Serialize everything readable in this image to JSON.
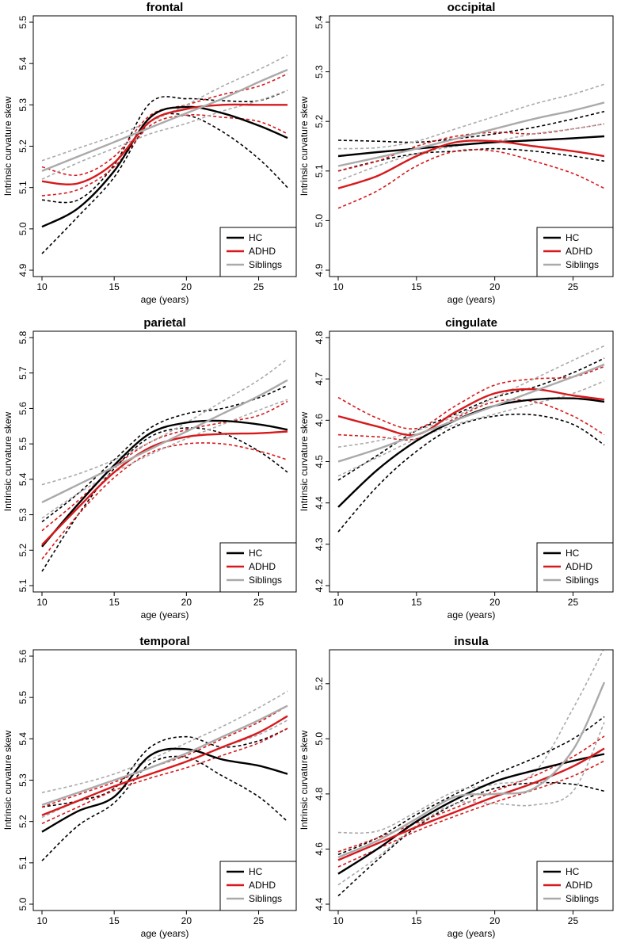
{
  "figure": {
    "legend_labels": [
      "HC",
      "ADHD",
      "Siblings"
    ]
  },
  "chart_data": [
    {
      "type": "line",
      "title": "frontal",
      "xlabel": "age (years)",
      "ylabel": "Intrinsic curvature skew",
      "xlim": [
        10,
        27
      ],
      "ylim": [
        4.9,
        5.5
      ],
      "xticks": [
        "10",
        "15",
        "20",
        "25"
      ],
      "yticks": [
        "4.9",
        "5.0",
        "5.1",
        "5.2",
        "5.3",
        "5.4",
        "5.5"
      ],
      "legend": "bottom-right",
      "x": [
        10,
        12.5,
        15,
        17.5,
        20,
        22.5,
        25,
        27
      ],
      "series": [
        {
          "name": "HC",
          "color": "#000000",
          "fit": [
            5.005,
            5.05,
            5.14,
            5.27,
            5.295,
            5.28,
            5.25,
            5.22
          ],
          "lower": [
            4.94,
            5.03,
            5.125,
            5.26,
            5.275,
            5.235,
            5.17,
            5.1
          ],
          "upper": [
            5.07,
            5.07,
            5.155,
            5.305,
            5.315,
            5.31,
            5.31,
            5.335
          ]
        },
        {
          "name": "ADHD",
          "color": "#d7191c",
          "fit": [
            5.115,
            5.11,
            5.16,
            5.26,
            5.29,
            5.3,
            5.3,
            5.3
          ],
          "lower": [
            5.08,
            5.095,
            5.15,
            5.25,
            5.275,
            5.27,
            5.26,
            5.23
          ],
          "upper": [
            5.15,
            5.13,
            5.175,
            5.275,
            5.3,
            5.325,
            5.345,
            5.375
          ]
        },
        {
          "name": "Siblings",
          "color": "#aaaaaa",
          "fit": [
            5.14,
            5.175,
            5.21,
            5.245,
            5.28,
            5.315,
            5.355,
            5.385
          ],
          "lower": [
            5.12,
            5.16,
            5.195,
            5.23,
            5.255,
            5.285,
            5.31,
            5.335
          ],
          "upper": [
            5.165,
            5.195,
            5.225,
            5.26,
            5.3,
            5.345,
            5.385,
            5.42
          ]
        }
      ]
    },
    {
      "type": "line",
      "title": "occipital",
      "xlabel": "age (years)",
      "ylabel": "Intrinsic curvature skew",
      "xlim": [
        10,
        27
      ],
      "ylim": [
        4.9,
        5.4
      ],
      "xticks": [
        "10",
        "15",
        "20",
        "25"
      ],
      "yticks": [
        "4.9",
        "5.0",
        "5.1",
        "5.2",
        "5.3",
        "5.4"
      ],
      "legend": "bottom-right",
      "x": [
        10,
        12.5,
        15,
        17.5,
        20,
        22.5,
        25,
        27
      ],
      "series": [
        {
          "name": "HC",
          "color": "#000000",
          "fit": [
            5.13,
            5.138,
            5.145,
            5.152,
            5.158,
            5.162,
            5.166,
            5.17
          ],
          "lower": [
            5.1,
            5.12,
            5.135,
            5.14,
            5.145,
            5.14,
            5.13,
            5.12
          ],
          "upper": [
            5.162,
            5.16,
            5.158,
            5.165,
            5.175,
            5.188,
            5.205,
            5.22
          ]
        },
        {
          "name": "ADHD",
          "color": "#d7191c",
          "fit": [
            5.065,
            5.09,
            5.13,
            5.158,
            5.16,
            5.15,
            5.14,
            5.13
          ],
          "lower": [
            5.025,
            5.06,
            5.11,
            5.14,
            5.14,
            5.12,
            5.095,
            5.065
          ],
          "upper": [
            5.1,
            5.12,
            5.15,
            5.17,
            5.178,
            5.175,
            5.185,
            5.195
          ]
        },
        {
          "name": "Siblings",
          "color": "#aaaaaa",
          "fit": [
            5.11,
            5.127,
            5.145,
            5.165,
            5.185,
            5.205,
            5.222,
            5.238
          ],
          "lower": [
            5.08,
            5.11,
            5.135,
            5.15,
            5.16,
            5.175,
            5.185,
            5.195
          ],
          "upper": [
            5.145,
            5.147,
            5.16,
            5.185,
            5.21,
            5.235,
            5.255,
            5.275
          ]
        }
      ]
    },
    {
      "type": "line",
      "title": "parietal",
      "xlabel": "age (years)",
      "ylabel": "Intrinsic curvature skew",
      "xlim": [
        10,
        27
      ],
      "ylim": [
        5.1,
        5.8
      ],
      "xticks": [
        "10",
        "15",
        "20",
        "25"
      ],
      "yticks": [
        "5.1",
        "5.2",
        "5.3",
        "5.4",
        "5.5",
        "5.6",
        "5.7",
        "5.8"
      ],
      "legend": "bottom-right",
      "x": [
        10,
        12.5,
        15,
        17.5,
        20,
        22.5,
        25,
        27
      ],
      "series": [
        {
          "name": "HC",
          "color": "#000000",
          "fit": [
            5.21,
            5.33,
            5.44,
            5.53,
            5.56,
            5.565,
            5.555,
            5.54
          ],
          "lower": [
            5.14,
            5.3,
            5.43,
            5.52,
            5.545,
            5.53,
            5.48,
            5.42
          ],
          "upper": [
            5.28,
            5.36,
            5.455,
            5.545,
            5.585,
            5.6,
            5.63,
            5.665
          ]
        },
        {
          "name": "ADHD",
          "color": "#d7191c",
          "fit": [
            5.215,
            5.32,
            5.42,
            5.49,
            5.52,
            5.528,
            5.53,
            5.535
          ],
          "lower": [
            5.175,
            5.3,
            5.405,
            5.475,
            5.5,
            5.5,
            5.48,
            5.455
          ],
          "upper": [
            5.255,
            5.34,
            5.435,
            5.505,
            5.54,
            5.56,
            5.58,
            5.62
          ]
        },
        {
          "name": "Siblings",
          "color": "#aaaaaa",
          "fit": [
            5.335,
            5.385,
            5.435,
            5.485,
            5.535,
            5.585,
            5.635,
            5.68
          ],
          "lower": [
            5.29,
            5.36,
            5.42,
            5.47,
            5.515,
            5.555,
            5.595,
            5.625
          ],
          "upper": [
            5.385,
            5.415,
            5.455,
            5.505,
            5.56,
            5.62,
            5.68,
            5.74
          ]
        }
      ]
    },
    {
      "type": "line",
      "title": "cingulate",
      "xlabel": "age (years)",
      "ylabel": "Intrinsic curvature skew",
      "xlim": [
        10,
        27
      ],
      "ylim": [
        4.2,
        4.8
      ],
      "xticks": [
        "10",
        "15",
        "20",
        "25"
      ],
      "yticks": [
        "4.2",
        "4.3",
        "4.4",
        "4.5",
        "4.6",
        "4.7",
        "4.8"
      ],
      "legend": "bottom-right",
      "x": [
        10,
        12.5,
        15,
        17.5,
        20,
        22.5,
        25,
        27
      ],
      "series": [
        {
          "name": "HC",
          "color": "#000000",
          "fit": [
            4.39,
            4.48,
            4.55,
            4.6,
            4.635,
            4.65,
            4.653,
            4.645
          ],
          "lower": [
            4.33,
            4.44,
            4.525,
            4.585,
            4.61,
            4.613,
            4.59,
            4.54
          ],
          "upper": [
            4.455,
            4.515,
            4.575,
            4.615,
            4.655,
            4.68,
            4.715,
            4.75
          ]
        },
        {
          "name": "ADHD",
          "color": "#d7191c",
          "fit": [
            4.61,
            4.585,
            4.565,
            4.62,
            4.665,
            4.675,
            4.66,
            4.65
          ],
          "lower": [
            4.565,
            4.56,
            4.555,
            4.605,
            4.645,
            4.645,
            4.61,
            4.565
          ],
          "upper": [
            4.655,
            4.605,
            4.58,
            4.635,
            4.685,
            4.7,
            4.705,
            4.73
          ]
        },
        {
          "name": "Siblings",
          "color": "#aaaaaa",
          "fit": [
            4.5,
            4.53,
            4.565,
            4.6,
            4.635,
            4.67,
            4.705,
            4.735
          ],
          "lower": [
            4.465,
            4.51,
            4.555,
            4.59,
            4.615,
            4.64,
            4.665,
            4.695
          ],
          "upper": [
            4.535,
            4.55,
            4.575,
            4.61,
            4.655,
            4.7,
            4.745,
            4.78
          ]
        }
      ]
    },
    {
      "type": "line",
      "title": "temporal",
      "xlabel": "age (years)",
      "ylabel": "Intrinsic curvature skew",
      "xlim": [
        10,
        27
      ],
      "ylim": [
        5.0,
        5.6
      ],
      "xticks": [
        "10",
        "15",
        "20",
        "25"
      ],
      "yticks": [
        "5.0",
        "5.1",
        "5.2",
        "5.3",
        "5.4",
        "5.5",
        "5.6"
      ],
      "legend": "bottom-right",
      "x": [
        10,
        12.5,
        15,
        17.5,
        20,
        22.5,
        25,
        27
      ],
      "series": [
        {
          "name": "HC",
          "color": "#000000",
          "fit": [
            5.175,
            5.225,
            5.26,
            5.36,
            5.375,
            5.35,
            5.335,
            5.315
          ],
          "lower": [
            5.105,
            5.19,
            5.245,
            5.34,
            5.355,
            5.31,
            5.26,
            5.2
          ],
          "upper": [
            5.235,
            5.25,
            5.28,
            5.38,
            5.405,
            5.38,
            5.395,
            5.425
          ]
        },
        {
          "name": "ADHD",
          "color": "#d7191c",
          "fit": [
            5.215,
            5.25,
            5.285,
            5.315,
            5.345,
            5.38,
            5.415,
            5.455
          ],
          "lower": [
            5.195,
            5.235,
            5.275,
            5.305,
            5.33,
            5.36,
            5.39,
            5.425
          ],
          "upper": [
            5.235,
            5.265,
            5.295,
            5.33,
            5.36,
            5.4,
            5.44,
            5.48
          ]
        },
        {
          "name": "Siblings",
          "color": "#aaaaaa",
          "fit": [
            5.24,
            5.27,
            5.3,
            5.33,
            5.365,
            5.405,
            5.445,
            5.48
          ],
          "lower": [
            5.21,
            5.25,
            5.285,
            5.315,
            5.345,
            5.38,
            5.41,
            5.445
          ],
          "upper": [
            5.27,
            5.29,
            5.315,
            5.35,
            5.39,
            5.43,
            5.475,
            5.515
          ]
        }
      ]
    },
    {
      "type": "line",
      "title": "insula",
      "xlabel": "age (years)",
      "ylabel": "Intrinsic curvature skew",
      "xlim": [
        10,
        27
      ],
      "ylim": [
        4.4,
        5.3
      ],
      "xticks": [
        "10",
        "15",
        "20",
        "25"
      ],
      "yticks": [
        "4.4",
        "4.6",
        "4.8",
        "5.0",
        "5.2"
      ],
      "legend": "bottom-right",
      "x": [
        10,
        12.5,
        15,
        17.5,
        20,
        22.5,
        25,
        27
      ],
      "series": [
        {
          "name": "HC",
          "color": "#000000",
          "fit": [
            4.51,
            4.6,
            4.7,
            4.78,
            4.845,
            4.885,
            4.92,
            4.945
          ],
          "lower": [
            4.43,
            4.56,
            4.68,
            4.765,
            4.82,
            4.84,
            4.835,
            4.81
          ],
          "upper": [
            4.58,
            4.64,
            4.725,
            4.8,
            4.87,
            4.93,
            5.0,
            5.08
          ]
        },
        {
          "name": "ADHD",
          "color": "#d7191c",
          "fit": [
            4.56,
            4.62,
            4.68,
            4.735,
            4.79,
            4.84,
            4.9,
            4.965
          ],
          "lower": [
            4.535,
            4.6,
            4.665,
            4.72,
            4.77,
            4.815,
            4.865,
            4.92
          ],
          "upper": [
            4.59,
            4.64,
            4.695,
            4.75,
            4.81,
            4.865,
            4.935,
            5.01
          ]
        },
        {
          "name": "Siblings",
          "color": "#aaaaaa",
          "fit": [
            4.57,
            4.63,
            4.71,
            4.79,
            4.8,
            4.82,
            4.96,
            5.205
          ],
          "lower": [
            4.47,
            4.57,
            4.685,
            4.765,
            4.765,
            4.76,
            4.81,
            5.06
          ],
          "upper": [
            4.66,
            4.665,
            4.735,
            4.81,
            4.835,
            4.875,
            5.11,
            5.33
          ]
        }
      ]
    }
  ]
}
